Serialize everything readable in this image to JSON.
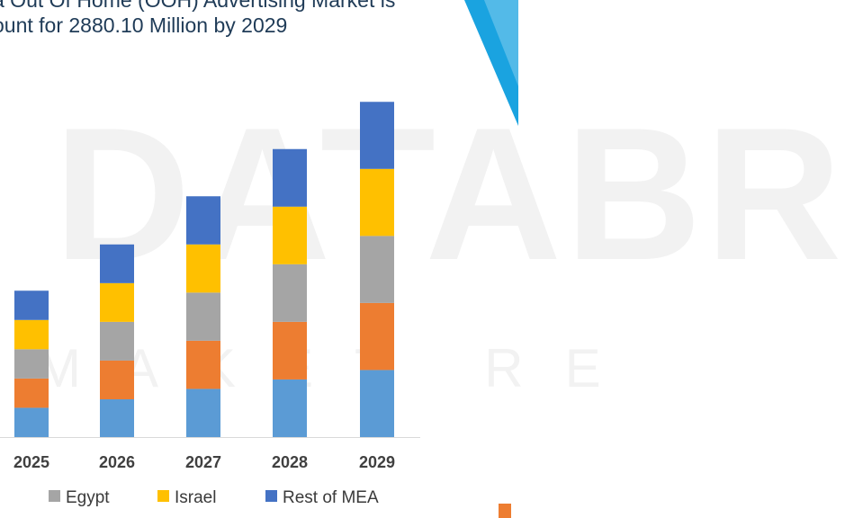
{
  "header": {
    "title_line1": "a Out Of Home (OOH) Advertising Market is",
    "title_line2": "ount for 2880.10 Million by 2029"
  },
  "watermark": {
    "line1": "DATABR",
    "line2": "MAKET RE"
  },
  "colors": {
    "rest_of_mea": "#4472c4",
    "israel": "#ffc000",
    "egypt": "#a5a5a5",
    "orange_series": "#ed7d31",
    "blue_series": "#5b9bd5",
    "accent_corner": "#1aa3e0"
  },
  "chart_data": {
    "type": "bar",
    "stacked": true,
    "categories": [
      "2025",
      "2026",
      "2027",
      "2028",
      "2029"
    ],
    "series": [
      {
        "name": "",
        "values": [
          31,
          40,
          51,
          61,
          71
        ]
      },
      {
        "name": "",
        "values": [
          31,
          41,
          51,
          61,
          71
        ]
      },
      {
        "name": "Egypt",
        "values": [
          31,
          41,
          51,
          61,
          71
        ]
      },
      {
        "name": "Israel",
        "values": [
          31,
          41,
          51,
          61,
          71
        ]
      },
      {
        "name": "Rest of MEA",
        "values": [
          31,
          41,
          51,
          61,
          71
        ]
      }
    ],
    "legend": [
      "",
      "",
      "Egypt",
      "Israel",
      "Rest of MEA"
    ],
    "legend_position": "bottom",
    "grid": false
  }
}
